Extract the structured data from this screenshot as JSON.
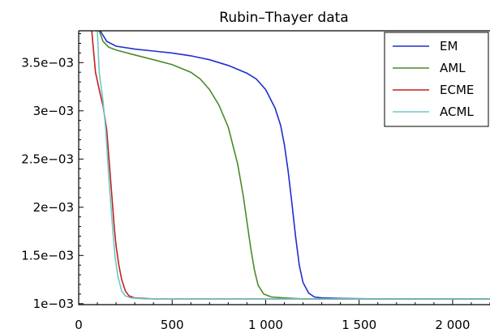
{
  "chart_data": {
    "type": "line",
    "title": "Rubin–Thayer data",
    "xlabel": "",
    "ylabel": "",
    "xlim": [
      0,
      2200
    ],
    "ylim": [
      0.00099,
      0.00383
    ],
    "x_ticks": [
      {
        "value": 0,
        "label": "0"
      },
      {
        "value": 500,
        "label": "500"
      },
      {
        "value": 1000,
        "label": "1 000"
      },
      {
        "value": 1500,
        "label": "1 500"
      },
      {
        "value": 2000,
        "label": "2 000"
      }
    ],
    "y_ticks": [
      {
        "value": 0.001,
        "label": "1e−03"
      },
      {
        "value": 0.0015,
        "label": "1.5e−03"
      },
      {
        "value": 0.002,
        "label": "2e−03"
      },
      {
        "value": 0.0025,
        "label": "2.5e−03"
      },
      {
        "value": 0.003,
        "label": "3e−03"
      },
      {
        "value": 0.0035,
        "label": "3.5e−03"
      }
    ],
    "legend_position": "top-right",
    "grid": false,
    "series": [
      {
        "name": "EM",
        "color": "#1f2fd0",
        "points": [
          [
            115,
            0.00383
          ],
          [
            150,
            0.00372
          ],
          [
            200,
            0.00367
          ],
          [
            300,
            0.00364
          ],
          [
            400,
            0.00362
          ],
          [
            500,
            0.0036
          ],
          [
            600,
            0.00357
          ],
          [
            700,
            0.00353
          ],
          [
            800,
            0.00347
          ],
          [
            900,
            0.00339
          ],
          [
            950,
            0.00333
          ],
          [
            1000,
            0.00322
          ],
          [
            1050,
            0.00303
          ],
          [
            1080,
            0.00285
          ],
          [
            1100,
            0.00265
          ],
          [
            1120,
            0.00238
          ],
          [
            1140,
            0.00205
          ],
          [
            1160,
            0.0017
          ],
          [
            1180,
            0.0014
          ],
          [
            1200,
            0.00122
          ],
          [
            1230,
            0.00111
          ],
          [
            1260,
            0.00107
          ],
          [
            1300,
            0.00106
          ],
          [
            1400,
            0.001055
          ],
          [
            1600,
            0.00105
          ],
          [
            2200,
            0.00105
          ]
        ]
      },
      {
        "name": "AML",
        "color": "#4a8a2a",
        "points": [
          [
            110,
            0.00383
          ],
          [
            130,
            0.00372
          ],
          [
            160,
            0.00366
          ],
          [
            200,
            0.00363
          ],
          [
            300,
            0.00358
          ],
          [
            400,
            0.00353
          ],
          [
            500,
            0.00348
          ],
          [
            600,
            0.0034
          ],
          [
            650,
            0.00333
          ],
          [
            700,
            0.00322
          ],
          [
            750,
            0.00306
          ],
          [
            800,
            0.00283
          ],
          [
            850,
            0.00245
          ],
          [
            880,
            0.00212
          ],
          [
            900,
            0.00185
          ],
          [
            920,
            0.00158
          ],
          [
            940,
            0.00135
          ],
          [
            960,
            0.00119
          ],
          [
            990,
            0.0011
          ],
          [
            1030,
            0.00107
          ],
          [
            1100,
            0.00106
          ],
          [
            1200,
            0.00105
          ],
          [
            2200,
            0.00105
          ]
        ]
      },
      {
        "name": "ECME",
        "color": "#c42020",
        "points": [
          [
            70,
            0.00383
          ],
          [
            90,
            0.0034
          ],
          [
            110,
            0.00322
          ],
          [
            130,
            0.00305
          ],
          [
            150,
            0.0028
          ],
          [
            160,
            0.00255
          ],
          [
            170,
            0.0023
          ],
          [
            180,
            0.00205
          ],
          [
            190,
            0.0018
          ],
          [
            200,
            0.0016
          ],
          [
            215,
            0.0014
          ],
          [
            230,
            0.00125
          ],
          [
            250,
            0.00113
          ],
          [
            270,
            0.00108
          ],
          [
            300,
            0.00106
          ],
          [
            400,
            0.00105
          ],
          [
            2200,
            0.00105
          ]
        ]
      },
      {
        "name": "ACML",
        "color": "#6cc8c8",
        "points": [
          [
            100,
            0.00383
          ],
          [
            110,
            0.0034
          ],
          [
            130,
            0.0031
          ],
          [
            145,
            0.0028
          ],
          [
            155,
            0.0025
          ],
          [
            165,
            0.0022
          ],
          [
            175,
            0.00195
          ],
          [
            185,
            0.0017
          ],
          [
            195,
            0.00148
          ],
          [
            210,
            0.00128
          ],
          [
            230,
            0.00113
          ],
          [
            250,
            0.00108
          ],
          [
            280,
            0.00106
          ],
          [
            350,
            0.00105
          ],
          [
            2200,
            0.00105
          ]
        ]
      }
    ]
  }
}
